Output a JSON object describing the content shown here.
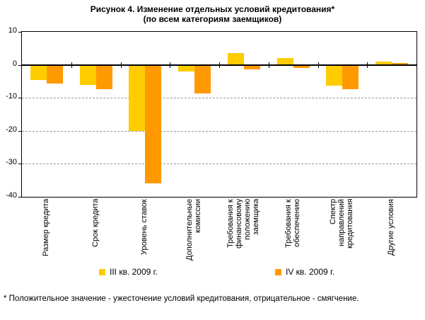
{
  "title": {
    "line1": "Рисунок 4. Изменение отдельных условий кредитования*",
    "line2": "(по всем категориям заемщиков)"
  },
  "footnote": "* Положительное значение - ужесточение условий кредитования, отрицательное - смягчение.",
  "legend": [
    {
      "label": "III кв. 2009 г.",
      "color": "#FFCC00"
    },
    {
      "label": "IV кв. 2009 г.",
      "color": "#FF9900"
    }
  ],
  "colors": {
    "grid": "#999999",
    "axis": "#000000",
    "background": "#ffffff"
  },
  "chart_data": {
    "type": "bar",
    "categories": [
      "Размер кредита",
      "Срок кредита",
      "Уровень ставок",
      "Дополнительные комиссии",
      "Требования к финансовому положению заемщика",
      "Требования к обеспечению",
      "Спектр направлений кредитования",
      "Другие условия"
    ],
    "category_label_lines": [
      [
        "Размер кредита"
      ],
      [
        "Срок кредита"
      ],
      [
        "Уровень ставок"
      ],
      [
        "Дополнительные",
        "комиссии"
      ],
      [
        "Требования к",
        "финансовому",
        "положению",
        "заемщика"
      ],
      [
        "Требования к",
        "обеспечению"
      ],
      [
        "Спектр",
        "направлений",
        "кредитования"
      ],
      [
        "Другие условия"
      ]
    ],
    "series": [
      {
        "name": "III кв. 2009 г.",
        "color": "#FFCC00",
        "values": [
          -4.5,
          -6.0,
          -20.0,
          -2.0,
          3.6,
          2.0,
          -6.3,
          1.0
        ]
      },
      {
        "name": "IV кв. 2009 г.",
        "color": "#FF9900",
        "values": [
          -5.7,
          -7.4,
          -36.0,
          -8.7,
          -1.3,
          -0.9,
          -7.4,
          0.6
        ]
      }
    ],
    "ylim": [
      -40,
      10
    ],
    "yticks": [
      10,
      0,
      -10,
      -20,
      -30,
      -40
    ],
    "gridlines": [
      -10,
      -20,
      -30
    ],
    "grid": "horizontal-dashed",
    "zero_line": true,
    "legend_position": "bottom",
    "xlabel": "",
    "ylabel": ""
  }
}
